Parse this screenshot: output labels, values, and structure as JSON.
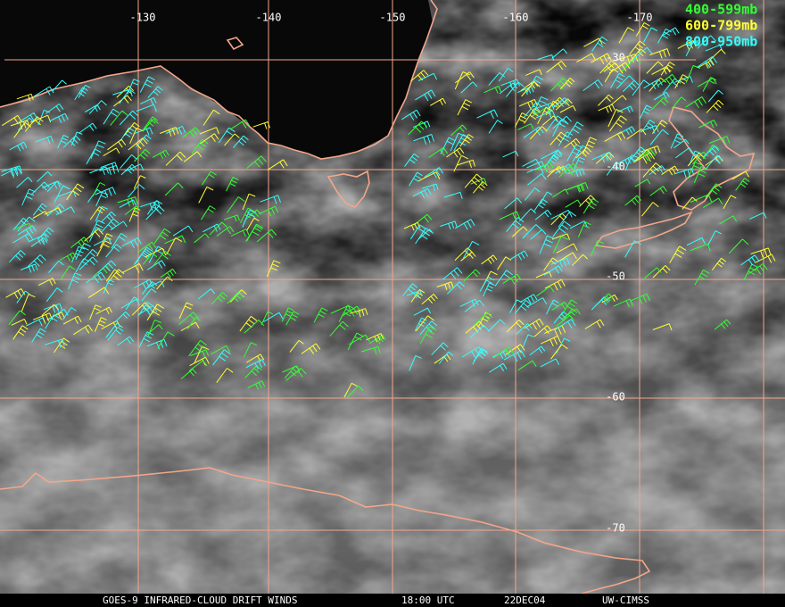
{
  "map": {
    "longitude_labels": [
      "-130",
      "-140",
      "-150",
      "-160",
      "-170"
    ],
    "latitude_labels": [
      "-30",
      "-40",
      "-50",
      "-60",
      "-70"
    ],
    "legend": [
      {
        "label": "400-599mb",
        "color": "#33ff33"
      },
      {
        "label": "600-799mb",
        "color": "#ffff33"
      },
      {
        "label": "800-950mb",
        "color": "#33ffff"
      }
    ],
    "footer": [
      "GOES-9 INFRARED-CLOUD DRIFT WINDS",
      "18:00 UTC",
      "22DEC04",
      "UW-CIMSS"
    ]
  }
}
